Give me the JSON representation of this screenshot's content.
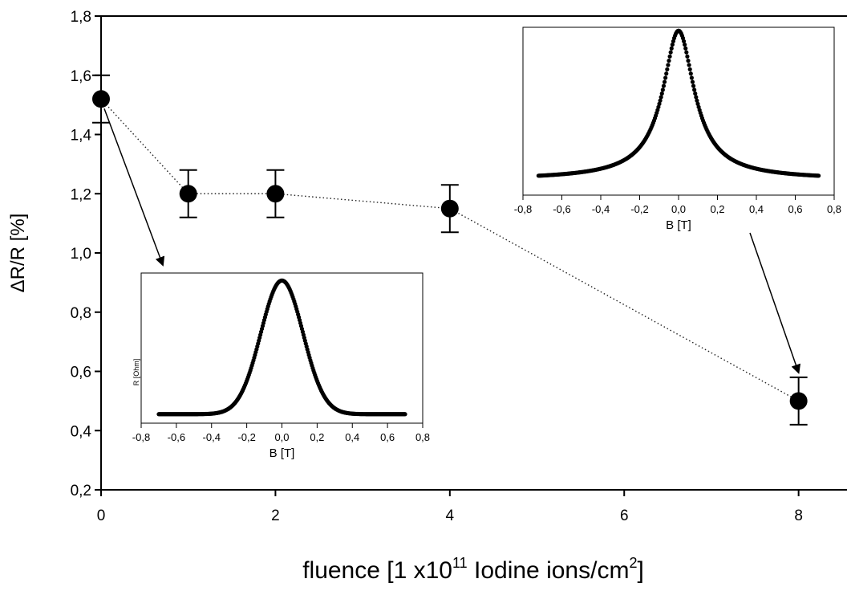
{
  "chart_data": [
    {
      "type": "scatter",
      "role": "main",
      "xlabel": "fluence [1 x10",
      "xlabel_sup": "11",
      "xlabel_mid": " Iodine ions/cm",
      "xlabel_sup2": "2",
      "xlabel_end": "]",
      "ylabel": "ΔR/R [%]",
      "xlim": [
        0,
        8.5
      ],
      "ylim": [
        0.2,
        1.8
      ],
      "x_ticks": [
        0,
        2,
        4,
        6,
        8
      ],
      "x_tick_labels": [
        "0",
        "2",
        "4",
        "6",
        "8"
      ],
      "y_ticks": [
        0.2,
        0.4,
        0.6,
        0.8,
        1.0,
        1.2,
        1.4,
        1.6,
        1.8
      ],
      "y_tick_labels": [
        "0,2",
        "0,4",
        "0,6",
        "0,8",
        "1,0",
        "1,2",
        "1,4",
        "1,6",
        "1,8"
      ],
      "line_style": "dotted",
      "points": [
        {
          "x": 0,
          "y": 1.52,
          "err": 0.08
        },
        {
          "x": 1,
          "y": 1.2,
          "err": 0.08
        },
        {
          "x": 2,
          "y": 1.2,
          "err": 0.08
        },
        {
          "x": 4,
          "y": 1.15,
          "err": 0.08
        },
        {
          "x": 8,
          "y": 0.5,
          "err": 0.08
        }
      ]
    },
    {
      "type": "scatter",
      "role": "inset",
      "attached_to_point_x": 0,
      "xlabel": "B [T]",
      "ylabel": "R [Ohm]",
      "xlim": [
        -0.8,
        0.8
      ],
      "x_ticks": [
        -0.8,
        -0.6,
        -0.4,
        -0.2,
        0.0,
        0.2,
        0.4,
        0.6,
        0.8
      ],
      "x_tick_labels": [
        "-0,8",
        "-0,6",
        "-0,4",
        "-0,2",
        "0,0",
        "0,2",
        "0,4",
        "0,6",
        "0,8"
      ],
      "ylim": [
        0,
        1
      ],
      "shape": "gaussian",
      "b_range": [
        -0.7,
        0.7
      ],
      "peak": 0.95,
      "baseline": 0.06,
      "width": 0.12
    },
    {
      "type": "scatter",
      "role": "inset",
      "attached_to_point_x": 8,
      "xlabel": "B [T]",
      "ylabel": "",
      "xlim": [
        -0.8,
        0.8
      ],
      "x_ticks": [
        -0.8,
        -0.6,
        -0.4,
        -0.2,
        0.0,
        0.2,
        0.4,
        0.6,
        0.8
      ],
      "x_tick_labels": [
        "-0,8",
        "-0,6",
        "-0,4",
        "-0,2",
        "0,0",
        "0,2",
        "0,4",
        "0,6",
        "0,8"
      ],
      "ylim": [
        0,
        1
      ],
      "shape": "lorentzian",
      "b_range": [
        -0.72,
        0.72
      ],
      "peak": 0.98,
      "baseline": 0.09,
      "width": 0.09
    }
  ]
}
